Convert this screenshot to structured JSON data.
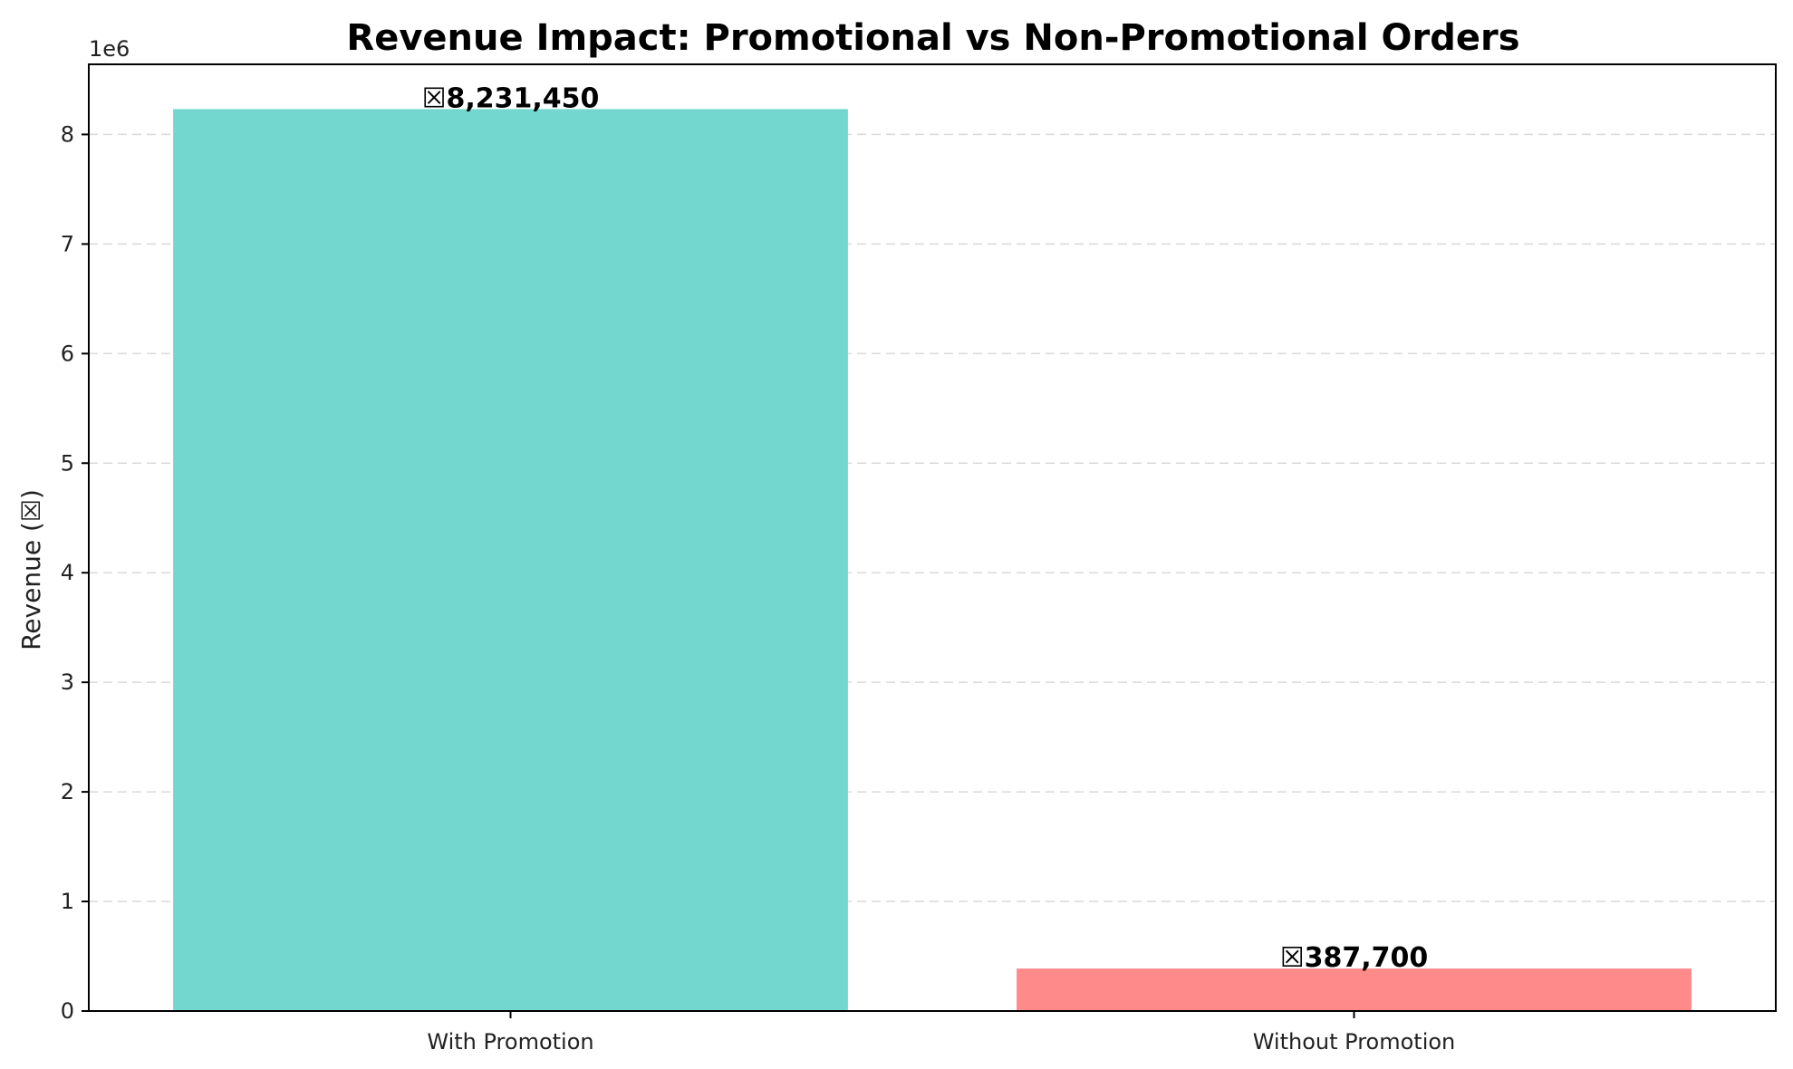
{
  "chart_data": {
    "type": "bar",
    "title": "Revenue Impact: Promotional vs Non-Promotional Orders",
    "xlabel": "",
    "ylabel": "Revenue (☒)",
    "categories": [
      "With Promotion",
      "Without Promotion"
    ],
    "values": [
      8231450,
      387700
    ],
    "data_labels": [
      "☒8,231,450",
      "☒387,700"
    ],
    "ylim": [
      0,
      8640000
    ],
    "yticks": [
      0,
      1000000,
      2000000,
      3000000,
      4000000,
      5000000,
      6000000,
      7000000,
      8000000
    ],
    "ytick_labels": [
      "0",
      "1",
      "2",
      "3",
      "4",
      "5",
      "6",
      "7",
      "8"
    ],
    "offset_label": "1e6",
    "colors": [
      "#74d7cf",
      "#ff8a8a"
    ],
    "grid": true,
    "legend": false
  }
}
